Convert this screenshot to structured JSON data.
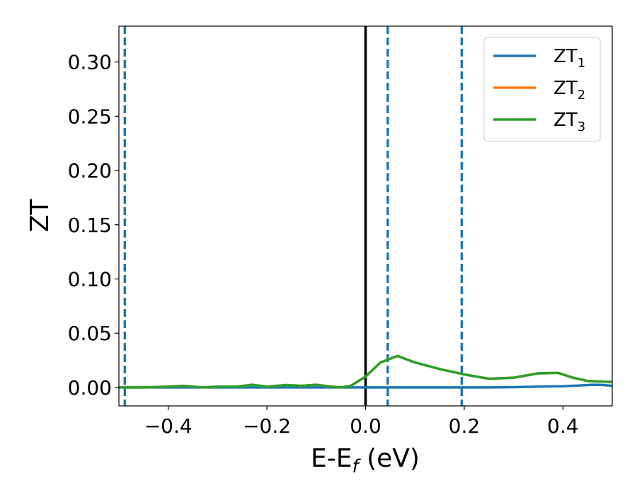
{
  "chart_data": {
    "type": "line",
    "xlabel": "E-E",
    "xlabel_sub": "f",
    "xlabel_unit": " (eV)",
    "ylabel": "ZT",
    "xlim": [
      -0.5,
      0.5
    ],
    "ylim": [
      -0.017,
      0.333
    ],
    "xticks": [
      -0.4,
      -0.2,
      0.0,
      0.2,
      0.4
    ],
    "xtick_labels": [
      "−0.4",
      "−0.2",
      "0.0",
      "0.2",
      "0.4"
    ],
    "yticks": [
      0.0,
      0.05,
      0.1,
      0.15,
      0.2,
      0.25,
      0.3
    ],
    "ytick_labels": [
      "0.00",
      "0.05",
      "0.10",
      "0.15",
      "0.20",
      "0.25",
      "0.30"
    ],
    "grid": false,
    "legend_position": "top-right",
    "vlines": [
      {
        "x": -0.488,
        "style": "dashed",
        "color": "#1f77b4"
      },
      {
        "x": 0.0,
        "style": "solid",
        "color": "#000000"
      },
      {
        "x": 0.045,
        "style": "dashed",
        "color": "#1f77b4"
      },
      {
        "x": 0.195,
        "style": "dashed",
        "color": "#1f77b4"
      }
    ],
    "series": [
      {
        "name": "ZT",
        "name_sub": "1",
        "color": "#1f77b4",
        "x": [
          -0.5,
          -0.4,
          -0.3,
          -0.2,
          -0.1,
          0.0,
          0.1,
          0.2,
          0.25,
          0.3,
          0.35,
          0.4,
          0.43,
          0.46,
          0.48,
          0.5
        ],
        "y": [
          0.0,
          0.0,
          0.0,
          0.0,
          0.0,
          0.0,
          0.0,
          0.0,
          0.0,
          0.0003,
          0.0008,
          0.0012,
          0.0018,
          0.0025,
          0.0023,
          0.0015
        ]
      },
      {
        "name": "ZT",
        "name_sub": "2",
        "color": "#ff7f0e",
        "x": [
          -0.5,
          -0.45,
          -0.4,
          -0.37,
          -0.33,
          -0.3,
          -0.26,
          -0.23,
          -0.2,
          -0.16,
          -0.13,
          -0.1,
          -0.07,
          -0.05,
          -0.03,
          0.0,
          0.03,
          0.065,
          0.1,
          0.15,
          0.2,
          0.25,
          0.3,
          0.35,
          0.39,
          0.42,
          0.45,
          0.5
        ],
        "y": [
          0.0,
          0.0,
          0.0008,
          0.0015,
          0.0,
          0.0008,
          0.0008,
          0.0025,
          0.0008,
          0.0022,
          0.0015,
          0.0025,
          0.0008,
          0.0,
          0.0015,
          0.01,
          0.023,
          0.029,
          0.023,
          0.017,
          0.012,
          0.008,
          0.009,
          0.013,
          0.0135,
          0.009,
          0.006,
          0.005
        ]
      },
      {
        "name": "ZT",
        "name_sub": "3",
        "color": "#2ca02c",
        "x": [
          -0.5,
          -0.45,
          -0.4,
          -0.37,
          -0.33,
          -0.3,
          -0.26,
          -0.23,
          -0.2,
          -0.16,
          -0.13,
          -0.1,
          -0.07,
          -0.05,
          -0.03,
          0.0,
          0.03,
          0.065,
          0.1,
          0.15,
          0.2,
          0.25,
          0.3,
          0.35,
          0.39,
          0.42,
          0.45,
          0.5
        ],
        "y": [
          0.0,
          0.0,
          0.0008,
          0.0015,
          0.0,
          0.0008,
          0.0008,
          0.0025,
          0.0008,
          0.0022,
          0.0015,
          0.0025,
          0.0008,
          0.0,
          0.0015,
          0.01,
          0.023,
          0.029,
          0.023,
          0.017,
          0.012,
          0.008,
          0.009,
          0.013,
          0.0135,
          0.009,
          0.006,
          0.005
        ]
      }
    ]
  }
}
